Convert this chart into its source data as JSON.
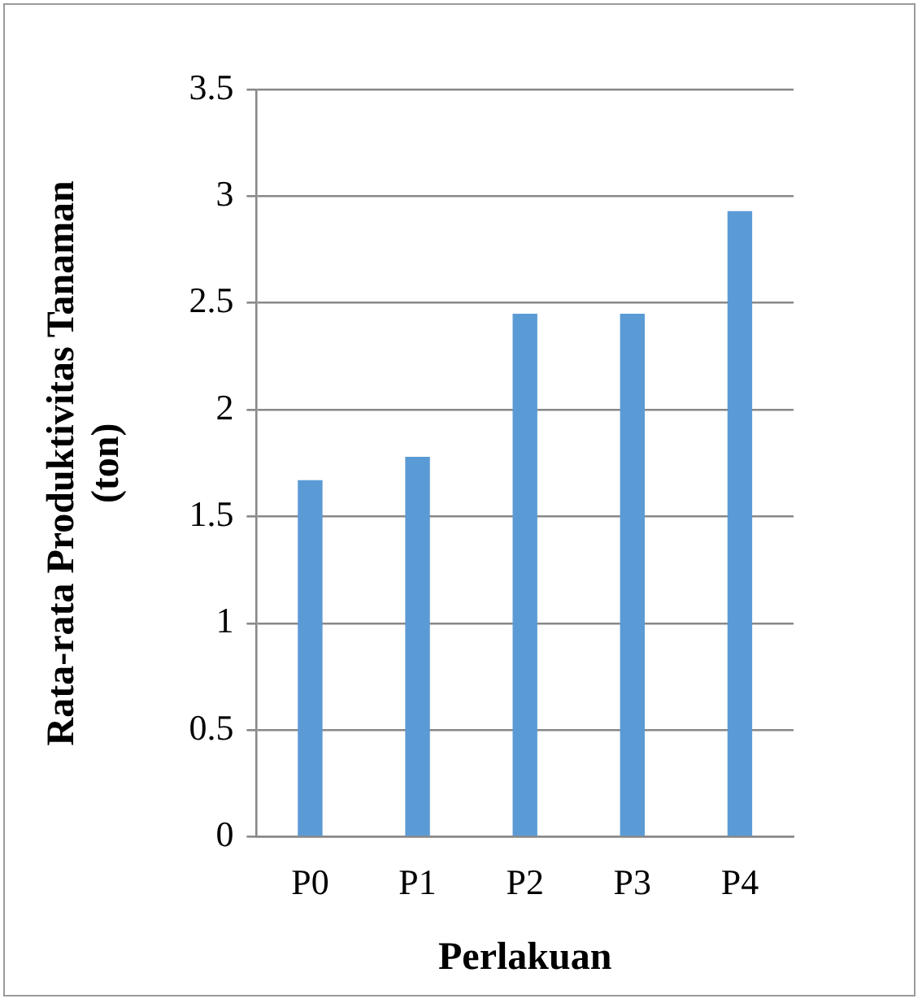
{
  "chart_data": {
    "type": "bar",
    "xlabel": "Perlakuan",
    "ylabel": "Rata-rata Produktivitas Tanaman (ton)",
    "categories": [
      "P0",
      "P1",
      "P2",
      "P3",
      "P4"
    ],
    "values": [
      1.67,
      1.78,
      2.45,
      2.45,
      2.93
    ],
    "color": "#5b9bd5",
    "ylim": [
      0,
      3.5
    ],
    "yticks": [
      0,
      0.5,
      1,
      1.5,
      2,
      2.5,
      3,
      3.5
    ],
    "grid": "y",
    "legend": false
  }
}
